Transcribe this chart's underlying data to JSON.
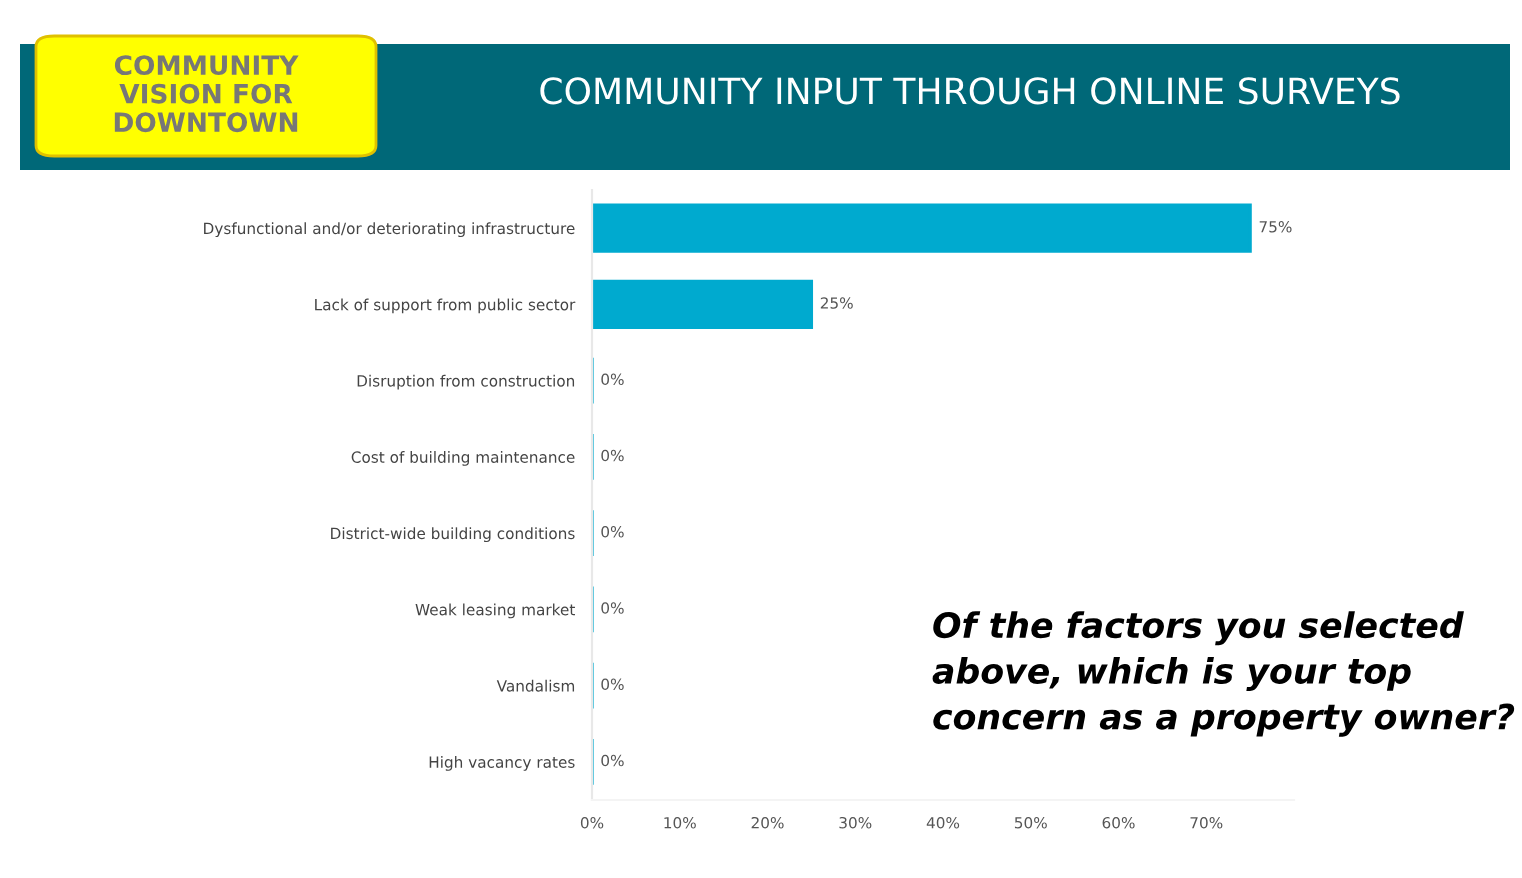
{
  "chart_data": {
    "type": "bar",
    "orientation": "horizontal",
    "title": "COMMUNITY INPUT THROUGH ONLINE SURVEYS",
    "subtitle": "COMMUNITY\nVISION FOR\nDOWNTOWN",
    "annotations": [
      "Of the factors you selected\nabove, which is your top\nconcern as a property owner?"
    ],
    "categories": [
      "Dysfunctional and/or deteriorating infrastructure",
      "Lack of support from public sector",
      "Disruption from construction",
      "Cost of building maintenance",
      "District-wide building conditions",
      "Weak leasing market",
      "Vandalism",
      "High vacancy rates"
    ],
    "values": [
      75,
      25,
      0,
      0,
      0,
      0,
      0,
      0
    ],
    "value_labels": [
      "75%",
      "25%",
      "0%",
      "0%",
      "0%",
      "0%",
      "0%",
      "0%"
    ],
    "color": "#00aacf",
    "xlim": [
      0,
      80
    ],
    "xticks": [
      {
        "value": 0,
        "label": "0%"
      },
      {
        "value": 10,
        "label": "10%"
      },
      {
        "value": 20,
        "label": "20%"
      },
      {
        "value": 30,
        "label": "30%"
      },
      {
        "value": 40,
        "label": "40%"
      },
      {
        "value": 50,
        "label": "50%"
      },
      {
        "value": 60,
        "label": "60%"
      },
      {
        "value": 70,
        "label": "70%"
      }
    ],
    "grid": false,
    "legend": false
  }
}
